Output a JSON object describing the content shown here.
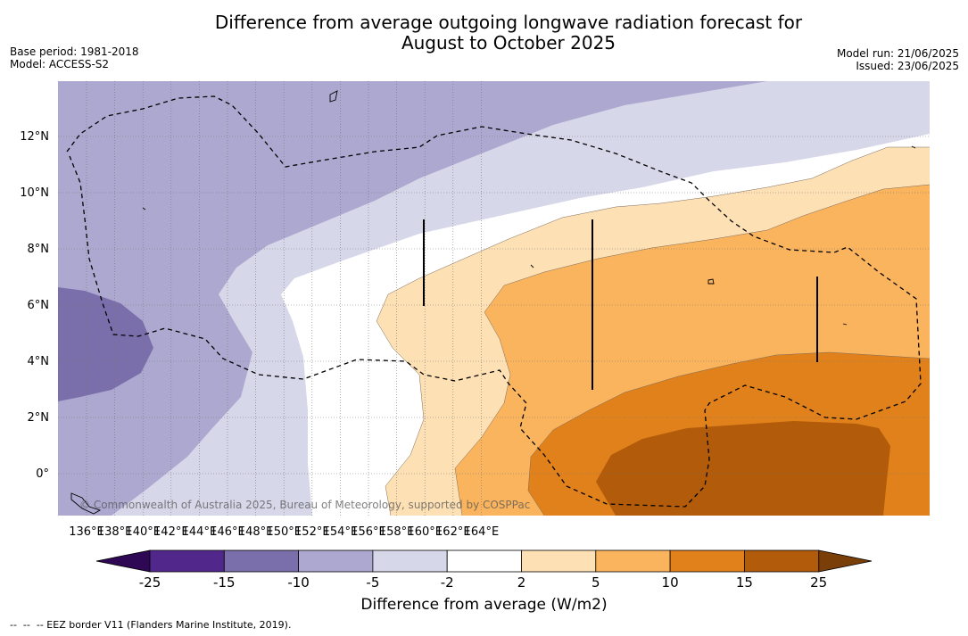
{
  "title_line1": "Difference from average outgoing longwave radiation forecast for",
  "title_line2": "August to October 2025",
  "base_period": "Base period: 1981-2018",
  "model": "Model: ACCESS-S2",
  "model_run": "Model run: 21/06/2025",
  "issued": "Issued: 23/06/2025",
  "copyright": "© Commonwealth of Australia 2025, Bureau of Meteorology, supported by COSPPac",
  "eez_note": "--  --  -- EEZ border V11 (Flanders Marine Institute, 2019).",
  "colorbar": {
    "label": "Difference from average (W/m2)",
    "ticks": [
      "-25",
      "-15",
      "-10",
      "-5",
      "-2",
      "2",
      "5",
      "10",
      "15",
      "25"
    ],
    "colors": [
      "#52278c",
      "#7b6fab",
      "#ada8d0",
      "#d7d7ea",
      "#ffffff",
      "#fee0b5",
      "#fbb45e",
      "#e0811b",
      "#b25b0a"
    ],
    "under_color": "#2e0854",
    "over_color": "#7a3e08"
  },
  "axes": {
    "lon_labels": [
      "136°E",
      "138°E",
      "140°E",
      "142°E",
      "144°E",
      "146°E",
      "148°E",
      "150°E",
      "152°E",
      "154°E",
      "156°E",
      "158°E",
      "160°E",
      "162°E",
      "164°E"
    ],
    "lat_labels": [
      "12°N",
      "10°N",
      "8°N",
      "6°N",
      "4°N",
      "2°N",
      "0°"
    ]
  }
}
